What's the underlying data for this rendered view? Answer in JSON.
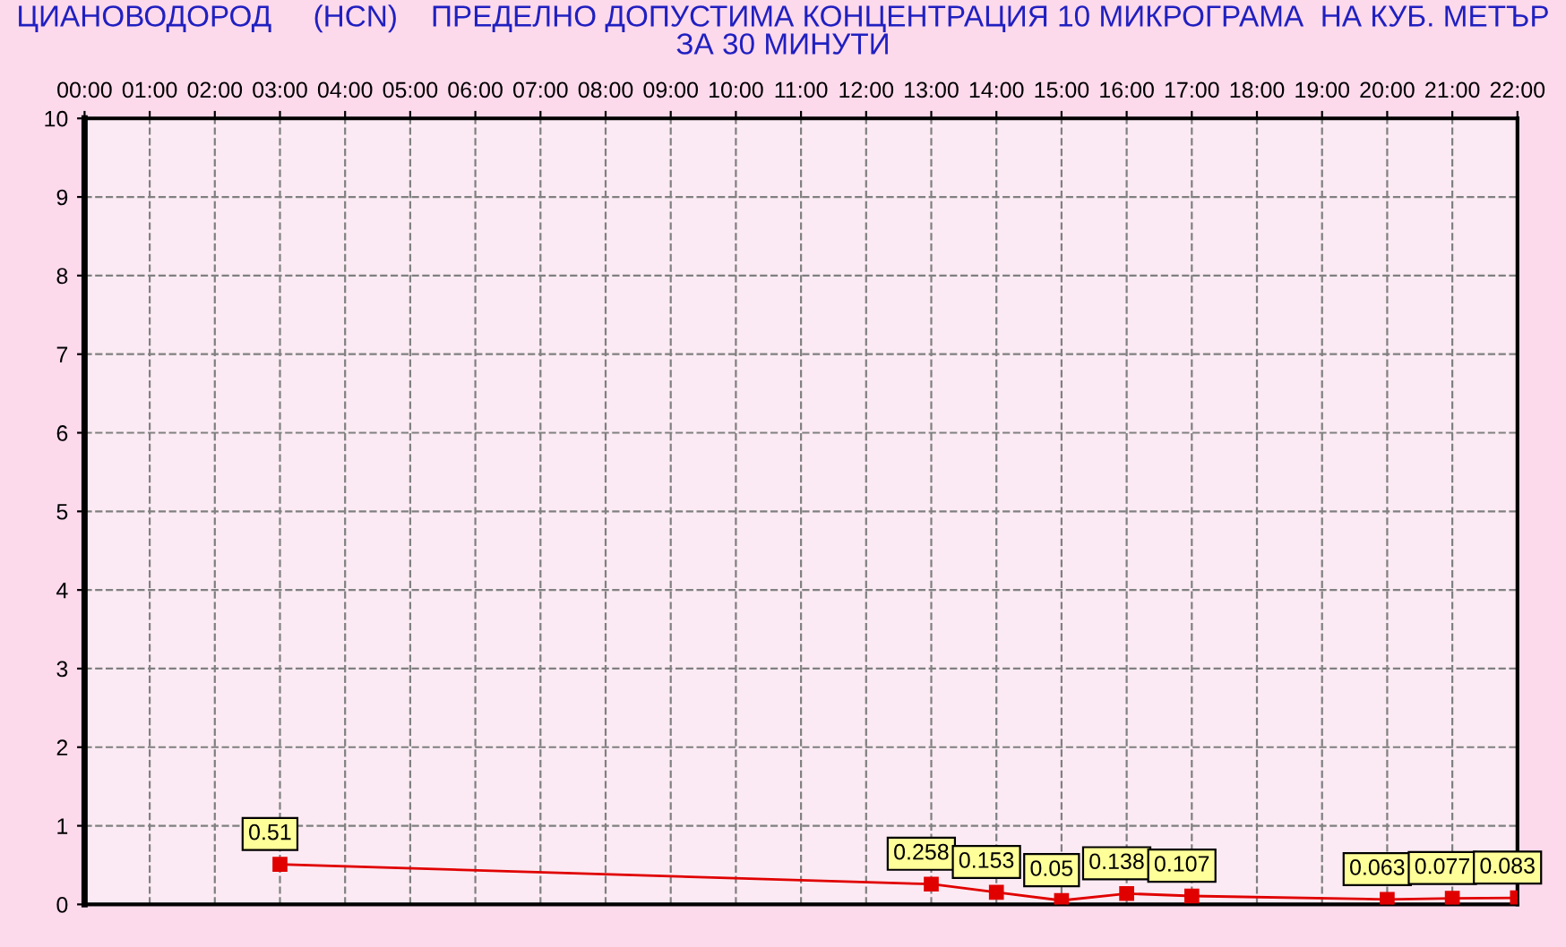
{
  "chart_data": {
    "type": "line",
    "title": "ЦИАНОВОДОРОД     (HCN)    ПРЕДЕЛНО ДОПУСТИМА КОНЦЕНТРАЦИЯ 10 МИКРОГРАМА  НА КУБ. МЕТЪР\nЗА 30 МИНУТИ",
    "x": [
      3,
      13,
      14,
      15,
      16,
      17,
      20,
      21,
      22
    ],
    "series": [
      {
        "color": "#e00000",
        "values": [
          0.51,
          0.258,
          0.153,
          0.05,
          0.138,
          0.107,
          0.063,
          0.077,
          0.083
        ]
      }
    ],
    "xlim": [
      0,
      22
    ],
    "xticks": [
      {
        "value": 0,
        "label": "00:00"
      },
      {
        "value": 1,
        "label": "01:00"
      },
      {
        "value": 2,
        "label": "02:00"
      },
      {
        "value": 3,
        "label": "03:00"
      },
      {
        "value": 4,
        "label": "04:00"
      },
      {
        "value": 5,
        "label": "05:00"
      },
      {
        "value": 6,
        "label": "06:00"
      },
      {
        "value": 7,
        "label": "07:00"
      },
      {
        "value": 8,
        "label": "08:00"
      },
      {
        "value": 9,
        "label": "09:00"
      },
      {
        "value": 10,
        "label": "10:00"
      },
      {
        "value": 11,
        "label": "11:00"
      },
      {
        "value": 12,
        "label": "12:00"
      },
      {
        "value": 13,
        "label": "13:00"
      },
      {
        "value": 14,
        "label": "14:00"
      },
      {
        "value": 15,
        "label": "15:00"
      },
      {
        "value": 16,
        "label": "16:00"
      },
      {
        "value": 17,
        "label": "17:00"
      },
      {
        "value": 18,
        "label": "18:00"
      },
      {
        "value": 19,
        "label": "19:00"
      },
      {
        "value": 20,
        "label": "20:00"
      },
      {
        "value": 21,
        "label": "21:00"
      },
      {
        "value": 22,
        "label": "22:00"
      }
    ],
    "ylim": [
      0,
      10
    ],
    "yticks": [
      0,
      1,
      2,
      3,
      4,
      5,
      6,
      7,
      8,
      9,
      10
    ],
    "grid": true,
    "marker": "square",
    "line_style": "solid",
    "data_labels": true
  }
}
